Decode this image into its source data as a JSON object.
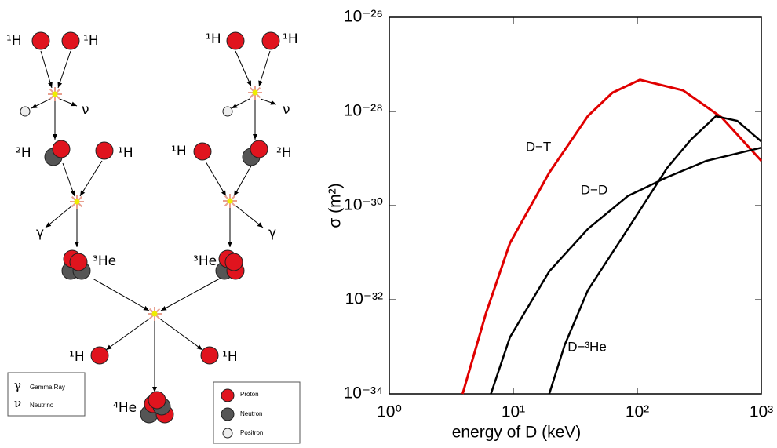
{
  "diagram": {
    "labels": [
      "¹H",
      "¹H",
      "ν",
      "²H",
      "¹H",
      "γ",
      "³He",
      "¹H",
      "¹H",
      "ν",
      "¹H",
      "²H",
      "γ",
      "³He",
      "¹H",
      "¹H",
      "⁴He"
    ],
    "legend_left": [
      {
        "symbol": "γ",
        "text": "Gamma Ray"
      },
      {
        "symbol": "ν",
        "text": "Neutrino"
      }
    ],
    "legend_right": [
      "Proton",
      "Neutron",
      "Positron"
    ]
  },
  "chart_data": {
    "type": "line",
    "xlabel": "energy of D (keV)",
    "ylabel": "σ (m²)",
    "log_x": true,
    "log_y": true,
    "xlim": [
      1,
      1000
    ],
    "ylim": [
      1e-34,
      1e-26
    ],
    "xticks": [
      {
        "value": 1,
        "label": "10⁰"
      },
      {
        "value": 10,
        "label": "10¹"
      },
      {
        "value": 100,
        "label": "10²"
      },
      {
        "value": 1000,
        "label": "10³"
      }
    ],
    "yticks": [
      {
        "value": 1e-34,
        "label": "10⁻³⁴"
      },
      {
        "value": 1e-32,
        "label": "10⁻³²"
      },
      {
        "value": 1e-30,
        "label": "10⁻³⁰"
      },
      {
        "value": 1e-28,
        "label": "10⁻²⁸"
      },
      {
        "value": 1e-26,
        "label": "10⁻²⁶"
      }
    ],
    "series": [
      {
        "name": "D−T",
        "color": "#e00000",
        "x": [
          3.9,
          6,
          9.4,
          19.5,
          40,
          63,
          105,
          234,
          480,
          1000
        ],
        "values": [
          1e-34,
          5e-33,
          1.6e-31,
          5e-30,
          8e-29,
          2.5e-28,
          4.7e-28,
          2.8e-28,
          7.4e-29,
          8.9e-30
        ]
      },
      {
        "name": "D−D",
        "color": "#000000",
        "x": [
          6.6,
          9.4,
          19.5,
          40,
          84,
          174,
          360,
          1000
        ],
        "values": [
          1e-34,
          1.6e-33,
          4e-32,
          3.2e-31,
          1.6e-30,
          4e-30,
          8.9e-30,
          1.7e-29
        ]
      },
      {
        "name": "D−³He",
        "color": "#000000",
        "x": [
          19.5,
          26,
          40,
          84,
          174,
          270,
          430,
          640,
          1000
        ],
        "values": [
          1e-34,
          1.1e-33,
          1.6e-32,
          3.2e-31,
          6.3e-30,
          2.5e-29,
          7.9e-29,
          6.3e-29,
          2.3e-29
        ]
      }
    ]
  }
}
